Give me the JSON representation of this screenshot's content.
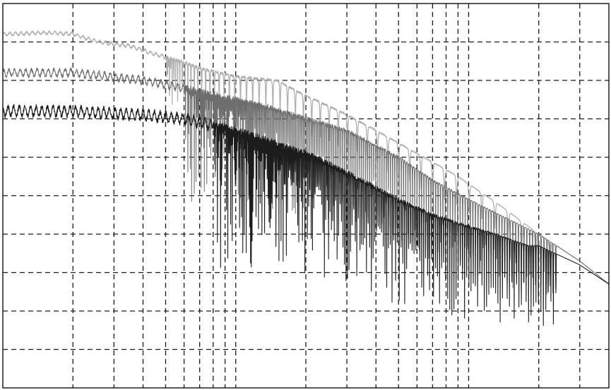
{
  "chart_data": {
    "type": "line",
    "title": "",
    "xlabel": "",
    "ylabel": "",
    "x_scale": "log",
    "xlim": [
      1,
      400
    ],
    "ylim": [
      -100,
      0
    ],
    "x_gridlines": [
      1,
      2,
      3,
      4,
      5,
      6,
      7,
      8,
      9,
      10,
      20,
      30,
      40,
      50,
      60,
      70,
      80,
      90,
      100,
      200,
      300,
      400
    ],
    "y_gridlines": [
      0,
      -10,
      -20,
      -30,
      -40,
      -50,
      -60,
      -70,
      -80,
      -90,
      -100
    ],
    "grid": true,
    "grid_style": "dashed",
    "legend": "none",
    "series": [
      {
        "color": "#b0b0b0",
        "stroke_width": 1.3,
        "x": [
          1,
          1.5,
          2,
          2.4,
          2.9,
          3.5,
          4.4,
          5.8,
          7.2,
          10,
          15,
          20,
          28,
          40,
          60,
          90,
          140,
          200,
          300,
          400
        ],
        "values": [
          -8,
          -7.6,
          -7.9,
          -9.5,
          -10.5,
          -11,
          -13,
          -15,
          -17,
          -19,
          -20,
          -24,
          -28,
          -33,
          -39,
          -45,
          -53,
          -60,
          -67,
          -73
        ],
        "notch_start": 5,
        "notch_depth": 12,
        "notch_cycles": 30,
        "noise": 0.4
      },
      {
        "color": "#6e6e6e",
        "stroke_width": 1.0,
        "x": [
          1,
          2,
          4,
          6,
          10,
          14,
          20,
          30,
          40,
          50,
          70,
          100,
          200,
          300,
          400
        ],
        "values": [
          -18,
          -18,
          -20,
          -22,
          -25,
          -27,
          -30,
          -33,
          -37,
          -40,
          -46,
          -51,
          -60,
          -67,
          -73
        ],
        "notch_start": 6,
        "notch_depth": 30,
        "notch_cycles": 140,
        "noise": 0.9
      },
      {
        "color": "#1c1c1c",
        "stroke_width": 1.1,
        "x": [
          1,
          2,
          4,
          6,
          10,
          14,
          20,
          30,
          40,
          50,
          70,
          100,
          130,
          180,
          200,
          300,
          400
        ],
        "values": [
          -28,
          -28,
          -29,
          -30,
          -33,
          -36,
          -39,
          -44,
          -48,
          -51,
          -55,
          -58,
          -60,
          -63,
          -63,
          -68,
          -73
        ],
        "notch_start": 8,
        "notch_depth": 36,
        "notch_cycles": 150,
        "noise": 1.2
      }
    ]
  }
}
